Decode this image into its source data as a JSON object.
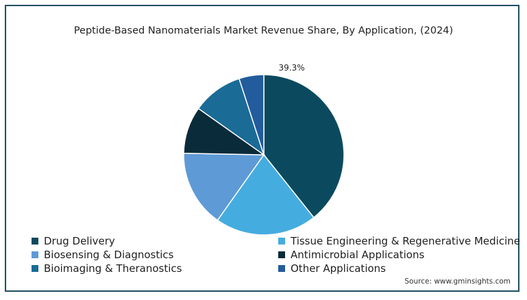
{
  "chart_data": {
    "type": "pie",
    "title": "Peptide-Based Nanomaterials Market Revenue Share, By Application, (2024)",
    "slices": [
      {
        "label": "Drug Delivery",
        "value": 39.3,
        "color": "#0b4a5e",
        "data_label": "39.3%"
      },
      {
        "label": "Tissue Engineering & Regenerative Medicine",
        "value": 20.5,
        "color": "#45ace0",
        "data_label": ""
      },
      {
        "label": "Biosensing & Diagnostics",
        "value": 15.5,
        "color": "#5e9ad6",
        "data_label": ""
      },
      {
        "label": "Antimicrobial Applications",
        "value": 9.5,
        "color": "#0a2b3a",
        "data_label": ""
      },
      {
        "label": "Bioimaging & Theranostics",
        "value": 10.2,
        "color": "#1a6b96",
        "data_label": ""
      },
      {
        "label": "Other Applications",
        "value": 5.0,
        "color": "#235c9c",
        "data_label": ""
      }
    ],
    "legend_position": "bottom"
  },
  "source": "Source: www.gminsights.com"
}
